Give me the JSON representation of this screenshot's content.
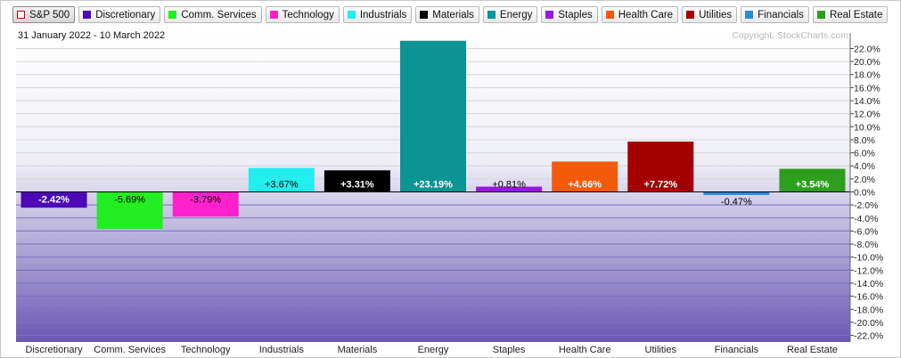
{
  "legend": [
    {
      "label": "S&P 500",
      "color": "#ffffff",
      "border": "#cc0000",
      "active": true
    },
    {
      "label": "Discretionary",
      "color": "#4b0ab5"
    },
    {
      "label": "Comm. Services",
      "color": "#22ee22"
    },
    {
      "label": "Technology",
      "color": "#ff22cc"
    },
    {
      "label": "Industrials",
      "color": "#22eeee"
    },
    {
      "label": "Materials",
      "color": "#000000"
    },
    {
      "label": "Energy",
      "color": "#0a9494"
    },
    {
      "label": "Staples",
      "color": "#9918e0"
    },
    {
      "label": "Health Care",
      "color": "#f45a0c"
    },
    {
      "label": "Utilities",
      "color": "#a40000"
    },
    {
      "label": "Financials",
      "color": "#2b88dd"
    },
    {
      "label": "Real Estate",
      "color": "#2d9e1e"
    }
  ],
  "header": {
    "date_range": "31 January 2022 - 10 March 2022",
    "copyright": "Copyright, StockCharts.com"
  },
  "chart_data": {
    "type": "bar",
    "categories": [
      "Discretionary",
      "Comm. Services",
      "Technology",
      "Industrials",
      "Materials",
      "Energy",
      "Staples",
      "Health Care",
      "Utilities",
      "Financials",
      "Real Estate"
    ],
    "values": [
      -2.42,
      -5.69,
      -3.79,
      3.67,
      3.31,
      23.19,
      0.81,
      4.66,
      7.72,
      -0.47,
      3.54
    ],
    "labels": [
      "-2.42%",
      "-5.69%",
      "-3.79%",
      "+3.67%",
      "+3.31%",
      "+23.19%",
      "+0.81%",
      "+4.66%",
      "+7.72%",
      "-0.47%",
      "+3.54%"
    ],
    "colors": [
      "#4b0ab5",
      "#22ee22",
      "#ff22cc",
      "#22eeee",
      "#000000",
      "#0a9494",
      "#9918e0",
      "#f45a0c",
      "#a40000",
      "#2b88dd",
      "#2d9e1e"
    ],
    "label_colors": [
      "#ffffff",
      "#000000",
      "#000000",
      "#000000",
      "#ffffff",
      "#ffffff",
      "#000000",
      "#ffffff",
      "#ffffff",
      "#000000",
      "#ffffff"
    ],
    "ylim": [
      -23,
      23
    ],
    "yticks": [
      22,
      20,
      18,
      16,
      14,
      12,
      10,
      8,
      6,
      4,
      2,
      0,
      -2,
      -4,
      -6,
      -8,
      -10,
      -12,
      -14,
      -16,
      -18,
      -20,
      -22
    ],
    "ytick_labels": [
      "22.0%",
      "20.0%",
      "18.0%",
      "16.0%",
      "14.0%",
      "12.0%",
      "10.0%",
      "8.0%",
      "6.0%",
      "4.0%",
      "2.0%",
      "0.0%",
      "-2.0%",
      "-4.0%",
      "-6.0%",
      "-8.0%",
      "-10.0%",
      "-12.0%",
      "-14.0%",
      "-16.0%",
      "-18.0%",
      "-20.0%",
      "-22.0%"
    ],
    "grid": true,
    "background_gradient": [
      "#ffffff",
      "#6a58b4"
    ]
  }
}
